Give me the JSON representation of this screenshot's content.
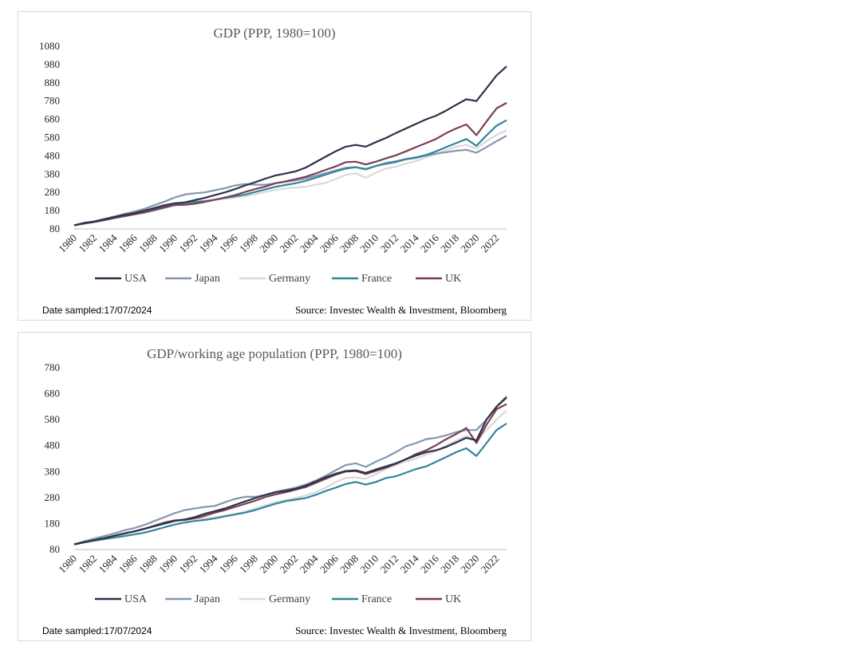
{
  "chart_data": [
    {
      "type": "line",
      "title": "GDP (PPP, 1980=100)",
      "xlabel": "",
      "ylabel": "",
      "ylim": [
        80,
        1080
      ],
      "yticks": [
        80,
        180,
        280,
        380,
        480,
        580,
        680,
        780,
        880,
        980,
        1080
      ],
      "xticks": [
        "1980",
        "1982",
        "1984",
        "1986",
        "1988",
        "1990",
        "1992",
        "1994",
        "1996",
        "1998",
        "2000",
        "2002",
        "2004",
        "2006",
        "2008",
        "2010",
        "2012",
        "2014",
        "2016",
        "2018",
        "2020",
        "2022"
      ],
      "x": [
        1980,
        1981,
        1982,
        1983,
        1984,
        1985,
        1986,
        1987,
        1988,
        1989,
        1990,
        1991,
        1992,
        1993,
        1994,
        1995,
        1996,
        1997,
        1998,
        1999,
        2000,
        2001,
        2002,
        2003,
        2004,
        2005,
        2006,
        2007,
        2008,
        2009,
        2010,
        2011,
        2012,
        2013,
        2014,
        2015,
        2016,
        2017,
        2018,
        2019,
        2020,
        2021,
        2022,
        2023
      ],
      "legend_position": "bottom",
      "series": [
        {
          "name": "USA",
          "color": "#2b3247",
          "values": [
            100,
            113,
            120,
            132,
            145,
            157,
            167,
            180,
            195,
            210,
            220,
            225,
            238,
            250,
            265,
            280,
            298,
            318,
            336,
            355,
            372,
            383,
            395,
            415,
            445,
            475,
            505,
            530,
            540,
            530,
            555,
            578,
            605,
            630,
            655,
            680,
            700,
            728,
            760,
            790,
            780,
            850,
            920,
            970
          ]
        },
        {
          "name": "Japan",
          "color": "#8497b0",
          "values": [
            100,
            112,
            122,
            135,
            148,
            162,
            175,
            190,
            210,
            230,
            252,
            268,
            275,
            280,
            292,
            303,
            318,
            326,
            322,
            322,
            330,
            338,
            346,
            356,
            370,
            385,
            400,
            415,
            418,
            405,
            425,
            435,
            445,
            462,
            468,
            482,
            492,
            500,
            508,
            513,
            497,
            528,
            560,
            590
          ]
        },
        {
          "name": "Germany",
          "color": "#d9d9d9",
          "values": [
            100,
            110,
            118,
            128,
            140,
            150,
            160,
            172,
            185,
            198,
            212,
            225,
            230,
            233,
            240,
            245,
            252,
            260,
            270,
            282,
            293,
            302,
            306,
            310,
            322,
            332,
            353,
            375,
            385,
            360,
            388,
            410,
            420,
            438,
            452,
            472,
            490,
            512,
            530,
            540,
            520,
            560,
            595,
            620
          ]
        },
        {
          "name": "France",
          "color": "#31859c",
          "values": [
            100,
            110,
            118,
            128,
            140,
            150,
            160,
            170,
            182,
            196,
            210,
            222,
            228,
            232,
            240,
            250,
            258,
            268,
            282,
            296,
            310,
            320,
            330,
            343,
            360,
            377,
            395,
            410,
            418,
            408,
            424,
            440,
            450,
            462,
            472,
            485,
            505,
            528,
            550,
            572,
            535,
            592,
            645,
            675
          ]
        },
        {
          "name": "UK",
          "color": "#7b3f52",
          "values": [
            100,
            109,
            118,
            128,
            140,
            150,
            160,
            170,
            186,
            200,
            210,
            212,
            218,
            228,
            240,
            252,
            265,
            282,
            298,
            312,
            330,
            340,
            352,
            365,
            383,
            403,
            422,
            445,
            448,
            433,
            448,
            466,
            483,
            505,
            528,
            550,
            573,
            605,
            630,
            652,
            593,
            668,
            740,
            770
          ]
        }
      ],
      "footnote_left": "Date sampled:17/07/2024",
      "footnote_right": "Source: Investec Wealth & Investment, Bloomberg"
    },
    {
      "type": "line",
      "title": "GDP/working age population  (PPP, 1980=100)",
      "xlabel": "",
      "ylabel": "",
      "ylim": [
        80,
        780
      ],
      "yticks": [
        80,
        180,
        280,
        380,
        480,
        580,
        680,
        780
      ],
      "xticks": [
        "1980",
        "1982",
        "1984",
        "1986",
        "1988",
        "1990",
        "1992",
        "1994",
        "1996",
        "1998",
        "2000",
        "2002",
        "2004",
        "2006",
        "2008",
        "2010",
        "2012",
        "2014",
        "2016",
        "2018",
        "2020",
        "2022"
      ],
      "x": [
        1980,
        1981,
        1982,
        1983,
        1984,
        1985,
        1986,
        1987,
        1988,
        1989,
        1990,
        1991,
        1992,
        1993,
        1994,
        1995,
        1996,
        1997,
        1998,
        1999,
        2000,
        2001,
        2002,
        2003,
        2004,
        2005,
        2006,
        2007,
        2008,
        2009,
        2010,
        2011,
        2012,
        2013,
        2014,
        2015,
        2016,
        2017,
        2018,
        2019,
        2020,
        2021,
        2022,
        2023
      ],
      "legend_position": "bottom",
      "series": [
        {
          "name": "USA",
          "color": "#2b3247",
          "values": [
            100,
            108,
            116,
            124,
            133,
            142,
            150,
            160,
            170,
            180,
            190,
            195,
            205,
            218,
            228,
            238,
            252,
            265,
            278,
            290,
            300,
            306,
            314,
            325,
            342,
            358,
            372,
            382,
            385,
            375,
            388,
            400,
            412,
            428,
            442,
            455,
            462,
            475,
            492,
            510,
            500,
            580,
            630,
            665
          ]
        },
        {
          "name": "Japan",
          "color": "#8497b0",
          "values": [
            100,
            112,
            122,
            132,
            142,
            154,
            163,
            175,
            190,
            205,
            220,
            232,
            238,
            244,
            248,
            262,
            275,
            283,
            283,
            290,
            302,
            310,
            318,
            330,
            345,
            364,
            385,
            405,
            412,
            398,
            418,
            435,
            455,
            478,
            490,
            505,
            510,
            520,
            532,
            540,
            540,
            580,
            630,
            670
          ]
        },
        {
          "name": "Germany",
          "color": "#d9d9d9",
          "values": [
            100,
            108,
            116,
            124,
            132,
            140,
            148,
            158,
            170,
            182,
            192,
            198,
            200,
            200,
            204,
            210,
            216,
            226,
            238,
            250,
            262,
            270,
            278,
            288,
            300,
            318,
            340,
            355,
            358,
            352,
            370,
            390,
            405,
            420,
            430,
            445,
            460,
            480,
            500,
            518,
            500,
            540,
            580,
            615
          ]
        },
        {
          "name": "France",
          "color": "#31859c",
          "values": [
            100,
            108,
            114,
            120,
            126,
            132,
            138,
            145,
            155,
            166,
            176,
            184,
            190,
            194,
            200,
            208,
            215,
            222,
            232,
            244,
            256,
            266,
            272,
            278,
            290,
            305,
            318,
            332,
            340,
            330,
            340,
            355,
            362,
            376,
            390,
            400,
            418,
            436,
            455,
            470,
            440,
            490,
            540,
            565
          ]
        },
        {
          "name": "UK",
          "color": "#7b3f52",
          "values": [
            100,
            108,
            116,
            124,
            133,
            142,
            150,
            160,
            172,
            184,
            192,
            194,
            200,
            210,
            222,
            232,
            244,
            256,
            268,
            282,
            292,
            300,
            310,
            320,
            336,
            352,
            368,
            380,
            382,
            370,
            383,
            395,
            410,
            428,
            448,
            462,
            482,
            505,
            525,
            548,
            490,
            560,
            620,
            640
          ]
        }
      ],
      "footnote_left": "Date sampled:17/07/2024",
      "footnote_right": "Source: Investec Wealth & Investment, Bloomberg"
    }
  ]
}
